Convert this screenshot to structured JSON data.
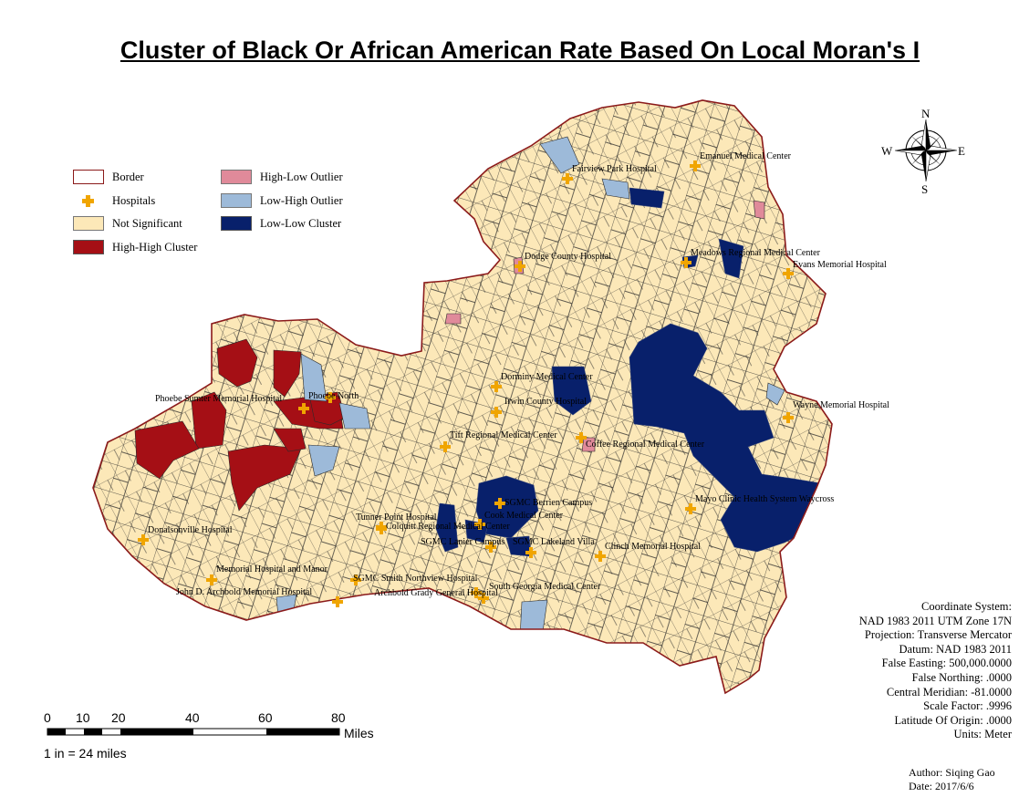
{
  "title": "Cluster of Black Or African American Rate Based On Local Moran's I",
  "legend": {
    "border": "Border",
    "hospitals": "Hospitals",
    "not_significant": "Not Significant",
    "high_high": "High-High Cluster",
    "high_low": "High-Low Outlier",
    "low_high": "Low-High Outlier",
    "low_low": "Low-Low Cluster"
  },
  "colors": {
    "border": "#8b1a1a",
    "hospital": "#f0a500",
    "not_significant": "#fce8b8",
    "high_high": "#a50f15",
    "high_low": "#e08a9a",
    "low_high": "#9dbad9",
    "low_low": "#08206b"
  },
  "hospitals": [
    "Fairview Park Hospital",
    "Emanuel Medical Center",
    "Dodge County Hospital",
    "Meadows Regional Medical Center",
    "Evans Memorial Hospital",
    "Phoebe Sumter Memorial Hospital",
    "Phoebe North",
    "Dorminy Medical Center",
    "Irwin County Hospital",
    "Wayne Memorial Hospital",
    "Tift Regional Medical Center",
    "Coffee Regional Medical Center",
    "SGMC Berrien Campus",
    "Mayo Clinic Health System Waycross",
    "Tunner Point Hospital",
    "Cook Medical Center",
    "Colquitt Regional Medical Center",
    "Donalsonville Hospital",
    "SGMC Lanier Campus",
    "SGMC Lakeland Villa",
    "Clinch Memorial Hospital",
    "Memorial Hospital and Manor",
    "SGMC Smith Northview Hospital",
    "John D. Archbold Memorial Hospital",
    "South Georgia Medical Center",
    "Archbold Grady General Hospital"
  ],
  "compass": {
    "n": "N",
    "s": "S",
    "e": "E",
    "w": "W"
  },
  "scale": {
    "ticks": [
      "0",
      "10",
      "20",
      "40",
      "60",
      "80"
    ],
    "unit": "Miles",
    "ratio": "1 in = 24 miles"
  },
  "coordinate_system": [
    "Coordinate System:",
    "NAD 1983 2011 UTM Zone 17N",
    "Projection: Transverse Mercator",
    "Datum: NAD 1983 2011",
    "False Easting: 500,000.0000",
    "False Northing: .0000",
    "Central Meridian: -81.0000",
    "Scale Factor: .9996",
    "Latitude Of Origin: .0000",
    "Units: Meter"
  ],
  "author": "Author: Siqing Gao",
  "date": "Date: 2017/6/6"
}
